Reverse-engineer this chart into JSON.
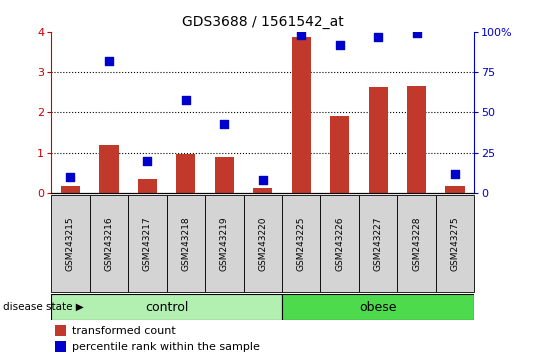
{
  "title": "GDS3688 / 1561542_at",
  "samples": [
    "GSM243215",
    "GSM243216",
    "GSM243217",
    "GSM243218",
    "GSM243219",
    "GSM243220",
    "GSM243225",
    "GSM243226",
    "GSM243227",
    "GSM243228",
    "GSM243275"
  ],
  "transformed_count": [
    0.18,
    1.2,
    0.35,
    0.97,
    0.88,
    0.13,
    3.88,
    1.9,
    2.62,
    2.65,
    0.17
  ],
  "percentile_rank": [
    10,
    82,
    20,
    58,
    43,
    8,
    98,
    92,
    97,
    99,
    12
  ],
  "bar_color": "#c0392b",
  "dot_color": "#0000cc",
  "n_control": 6,
  "n_obese": 5,
  "ylim_left": [
    0,
    4
  ],
  "ylim_right": [
    0,
    100
  ],
  "yticks_left": [
    0,
    1,
    2,
    3,
    4
  ],
  "yticks_right": [
    0,
    25,
    50,
    75,
    100
  ],
  "yticklabels_right": [
    "0",
    "25",
    "50",
    "75",
    "100%"
  ],
  "control_color": "#b2f0b2",
  "obese_color": "#4ddb4d",
  "left_axis_color": "#cc0000",
  "right_axis_color": "#0000cc",
  "bar_width": 0.5,
  "dot_size": 35,
  "bg_color": "#ffffff",
  "sample_box_color": "#d4d4d4",
  "title_fontsize": 10,
  "tick_fontsize": 8,
  "label_fontsize": 8,
  "legend_fontsize": 8
}
